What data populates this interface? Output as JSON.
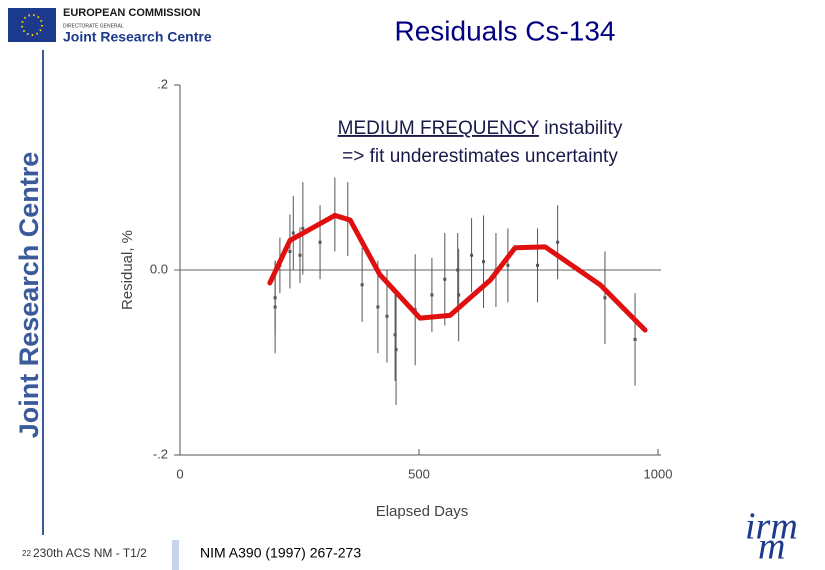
{
  "header": {
    "org": "EUROPEAN COMMISSION",
    "dg": "DIRECTORATE GENERAL",
    "unit": "Joint Research Centre",
    "side": "Joint Research Centre"
  },
  "footer": {
    "page": "22",
    "event": "230th ACS NM - T1/2",
    "reference": "NIM A390 (1997) 267-273",
    "logo_top": "irm",
    "logo_bottom": "m"
  },
  "chart_data": {
    "type": "scatter",
    "title": "Residuals Cs-134",
    "annotation": {
      "underlined": "MEDIUM FREQUENCY",
      "rest": "instability",
      "line2": "=> fit underestimates uncertainty"
    },
    "xlabel": "Elapsed Days",
    "ylabel": "Residual, %",
    "xlim": [
      0,
      1000
    ],
    "xticks": [
      0,
      500,
      1000
    ],
    "ylim": [
      -0.2,
      0.2
    ],
    "yticks": [
      {
        "value": 0.2,
        "label": ".2"
      },
      {
        "value": 0,
        "label": "0.0"
      },
      {
        "value": -0.2,
        "label": "-.2"
      }
    ],
    "zero_line": true,
    "series": [
      {
        "type": "errorbar",
        "color": "#555555",
        "x": [
          199,
          199,
          209,
          230,
          237,
          251,
          257,
          293,
          324,
          351,
          381,
          414,
          433,
          450,
          452,
          492,
          527,
          554,
          581,
          583,
          610,
          635,
          661,
          686,
          748,
          790,
          889,
          952
        ],
        "values": [
          -0.03,
          -0.04,
          0.005,
          0.02,
          0.04,
          0.016,
          0.045,
          0.03,
          0.06,
          0.055,
          -0.016,
          -0.04,
          -0.05,
          -0.07,
          -0.086,
          -0.043,
          -0.027,
          -0.01,
          0,
          -0.027,
          0.016,
          0.009,
          0,
          0.005,
          0.005,
          0.03,
          -0.03,
          -0.075
        ],
        "errors": [
          0.04,
          0.05,
          0.03,
          0.04,
          0.04,
          0.03,
          0.05,
          0.04,
          0.04,
          0.04,
          0.04,
          0.05,
          0.05,
          0.05,
          0.06,
          0.06,
          0.04,
          0.05,
          0.04,
          0.05,
          0.04,
          0.05,
          0.04,
          0.04,
          0.04,
          0.04,
          0.05,
          0.05
        ]
      },
      {
        "type": "line",
        "color": "#e01010",
        "x": [
          188,
          230,
          324,
          356,
          418,
          502,
          565,
          649,
          701,
          764,
          879,
          973
        ],
        "values": [
          -0.014,
          0.032,
          0.059,
          0.054,
          -0.005,
          -0.052,
          -0.049,
          -0.011,
          0.024,
          0.025,
          -0.016,
          -0.065
        ]
      }
    ]
  }
}
